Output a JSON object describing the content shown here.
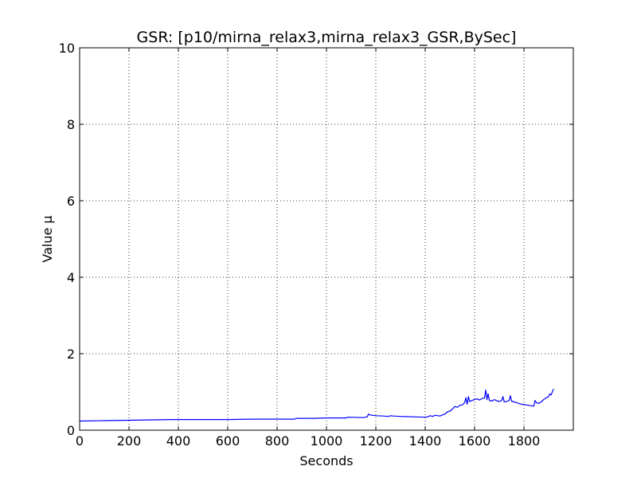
{
  "chart_data": {
    "type": "line",
    "title": "GSR: [p10/mirna_relax3,mirna_relax3_GSR,BySec]",
    "xlabel": "Seconds",
    "ylabel": "Value µ",
    "xlim": [
      0,
      2000
    ],
    "ylim": [
      0,
      10
    ],
    "x_ticks": [
      0,
      200,
      400,
      600,
      800,
      1000,
      1200,
      1400,
      1600,
      1800
    ],
    "y_ticks": [
      0,
      2,
      4,
      6,
      8,
      10
    ],
    "grid": true,
    "grid_style": "dotted",
    "series": [
      {
        "color": "#0000ff",
        "x": [
          0,
          100,
          200,
          300,
          380,
          400,
          500,
          600,
          700,
          800,
          870,
          880,
          950,
          1000,
          1080,
          1085,
          1150,
          1165,
          1170,
          1175,
          1200,
          1230,
          1250,
          1260,
          1270,
          1300,
          1350,
          1400,
          1410,
          1420,
          1430,
          1440,
          1460,
          1470,
          1480,
          1490,
          1500,
          1510,
          1520,
          1530,
          1540,
          1550,
          1560,
          1565,
          1570,
          1575,
          1580,
          1590,
          1600,
          1610,
          1620,
          1630,
          1640,
          1645,
          1650,
          1655,
          1660,
          1670,
          1680,
          1690,
          1700,
          1710,
          1715,
          1720,
          1730,
          1740,
          1745,
          1750,
          1760,
          1770,
          1780,
          1790,
          1800,
          1810,
          1820,
          1830,
          1840,
          1845,
          1850,
          1860,
          1870,
          1880,
          1890,
          1900,
          1905,
          1910,
          1915,
          1920
        ],
        "y": [
          0.24,
          0.25,
          0.26,
          0.27,
          0.28,
          0.28,
          0.28,
          0.28,
          0.29,
          0.29,
          0.29,
          0.31,
          0.31,
          0.32,
          0.32,
          0.34,
          0.33,
          0.35,
          0.42,
          0.4,
          0.38,
          0.37,
          0.36,
          0.38,
          0.37,
          0.36,
          0.35,
          0.34,
          0.35,
          0.38,
          0.36,
          0.39,
          0.37,
          0.4,
          0.42,
          0.48,
          0.5,
          0.55,
          0.62,
          0.6,
          0.65,
          0.66,
          0.72,
          0.85,
          0.68,
          0.88,
          0.75,
          0.78,
          0.8,
          0.82,
          0.79,
          0.83,
          0.84,
          1.05,
          0.8,
          0.95,
          0.78,
          0.76,
          0.8,
          0.77,
          0.75,
          0.78,
          0.88,
          0.74,
          0.75,
          0.78,
          0.9,
          0.76,
          0.74,
          0.72,
          0.7,
          0.68,
          0.67,
          0.66,
          0.65,
          0.64,
          0.63,
          0.78,
          0.72,
          0.7,
          0.74,
          0.8,
          0.85,
          0.88,
          0.95,
          0.92,
          1.0,
          1.08
        ]
      }
    ]
  }
}
